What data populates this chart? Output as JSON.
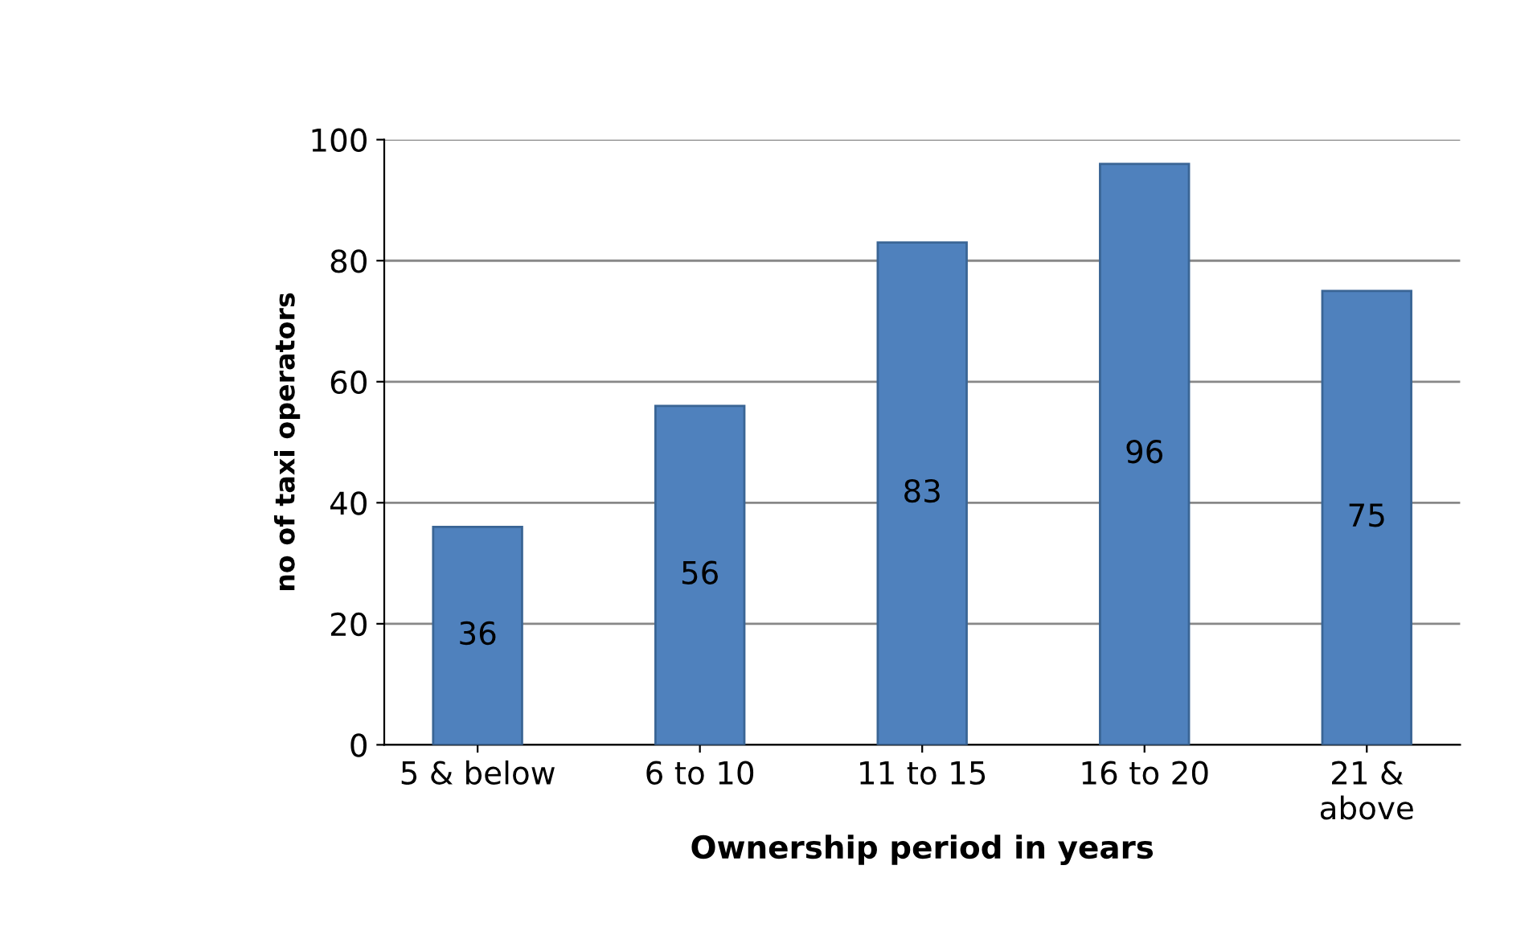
{
  "chart_data": {
    "type": "bar",
    "xlabel": "Ownership period in years",
    "ylabel": "no of taxi operators",
    "categories": [
      "5 & below",
      "6 to 10",
      "11 to 15",
      "16 to 20",
      "21 &\nabove"
    ],
    "values": [
      36,
      56,
      83,
      96,
      75
    ],
    "color": "#4f81bd",
    "ylim": [
      0,
      100
    ],
    "yticks": [
      0,
      20,
      40,
      60,
      80,
      100
    ],
    "grid": "y",
    "data_labels": true
  }
}
